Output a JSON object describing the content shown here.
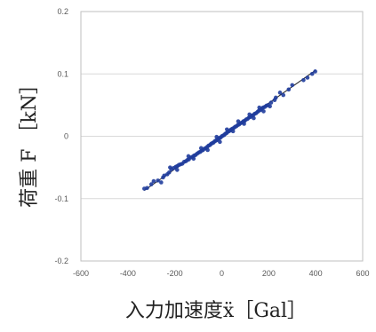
{
  "chart_data": {
    "type": "scatter",
    "title": "",
    "xlabel": "入力加速度ẍ［Gal］",
    "ylabel": "荷重 F ［kN］",
    "xlim": [
      -600,
      600
    ],
    "ylim": [
      -0.2,
      0.2
    ],
    "x_ticks": [
      -600,
      -400,
      -200,
      0,
      200,
      400,
      600
    ],
    "y_ticks": [
      -0.2,
      -0.1,
      0,
      0.1,
      0.2
    ],
    "x_tick_labels": [
      "-600",
      "-400",
      "-200",
      "0",
      "200",
      "400",
      "600"
    ],
    "y_tick_labels": [
      "-0.2",
      "-0.1",
      "0",
      "0.1",
      "0.2"
    ],
    "grid": true,
    "legend": "none",
    "marker_color": "#1f3c9c",
    "line_color": "#222222",
    "series": [
      {
        "points": [
          [
            -330,
            -0.084
          ],
          [
            -318,
            -0.083
          ],
          [
            -300,
            -0.077
          ],
          [
            -290,
            -0.072
          ],
          [
            -272,
            -0.071
          ],
          [
            -258,
            -0.074
          ],
          [
            -245,
            -0.063
          ],
          [
            -232,
            -0.061
          ],
          [
            -224,
            -0.058
          ],
          [
            -215,
            -0.053
          ],
          [
            -205,
            -0.051
          ],
          [
            -196,
            -0.049
          ],
          [
            -190,
            -0.048
          ],
          [
            -183,
            -0.046
          ],
          [
            -176,
            -0.045
          ],
          [
            -168,
            -0.044
          ],
          [
            -160,
            -0.041
          ],
          [
            -153,
            -0.04
          ],
          [
            -146,
            -0.038
          ],
          [
            -140,
            -0.037
          ],
          [
            -132,
            -0.034
          ],
          [
            -125,
            -0.033
          ],
          [
            -118,
            -0.031
          ],
          [
            -112,
            -0.03
          ],
          [
            -105,
            -0.028
          ],
          [
            -98,
            -0.026
          ],
          [
            -92,
            -0.025
          ],
          [
            -85,
            -0.023
          ],
          [
            -80,
            -0.022
          ],
          [
            -74,
            -0.02
          ],
          [
            -68,
            -0.019
          ],
          [
            -62,
            -0.017
          ],
          [
            -56,
            -0.015
          ],
          [
            -50,
            -0.014
          ],
          [
            -45,
            -0.012
          ],
          [
            -40,
            -0.011
          ],
          [
            -35,
            -0.01
          ],
          [
            -30,
            -0.008
          ],
          [
            -25,
            -0.007
          ],
          [
            -20,
            -0.006
          ],
          [
            -15,
            -0.004
          ],
          [
            -10,
            -0.003
          ],
          [
            -5,
            -0.002
          ],
          [
            0,
            0.0
          ],
          [
            5,
            0.001
          ],
          [
            10,
            0.002
          ],
          [
            15,
            0.004
          ],
          [
            20,
            0.005
          ],
          [
            25,
            0.007
          ],
          [
            30,
            0.008
          ],
          [
            35,
            0.009
          ],
          [
            40,
            0.011
          ],
          [
            45,
            0.012
          ],
          [
            50,
            0.013
          ],
          [
            56,
            0.015
          ],
          [
            62,
            0.016
          ],
          [
            68,
            0.018
          ],
          [
            74,
            0.019
          ],
          [
            80,
            0.021
          ],
          [
            86,
            0.022
          ],
          [
            92,
            0.024
          ],
          [
            98,
            0.025
          ],
          [
            104,
            0.027
          ],
          [
            110,
            0.028
          ],
          [
            116,
            0.03
          ],
          [
            122,
            0.031
          ],
          [
            128,
            0.033
          ],
          [
            134,
            0.034
          ],
          [
            140,
            0.036
          ],
          [
            146,
            0.037
          ],
          [
            152,
            0.039
          ],
          [
            158,
            0.041
          ],
          [
            164,
            0.042
          ],
          [
            170,
            0.044
          ],
          [
            176,
            0.046
          ],
          [
            183,
            0.047
          ],
          [
            190,
            0.049
          ],
          [
            197,
            0.05
          ],
          [
            210,
            0.054
          ],
          [
            225,
            0.058
          ],
          [
            248,
            0.07
          ],
          [
            262,
            0.066
          ],
          [
            285,
            0.075
          ],
          [
            300,
            0.082
          ],
          [
            348,
            0.09
          ],
          [
            365,
            0.094
          ],
          [
            385,
            0.1
          ],
          [
            398,
            0.104
          ],
          [
            -142,
            -0.032
          ],
          [
            -120,
            -0.036
          ],
          [
            -88,
            -0.019
          ],
          [
            -60,
            -0.022
          ],
          [
            -22,
            -0.001
          ],
          [
            -8,
            -0.009
          ],
          [
            22,
            0.011
          ],
          [
            48,
            0.008
          ],
          [
            70,
            0.024
          ],
          [
            95,
            0.02
          ],
          [
            118,
            0.035
          ],
          [
            136,
            0.029
          ],
          [
            160,
            0.046
          ],
          [
            178,
            0.04
          ],
          [
            -190,
            -0.054
          ],
          [
            -220,
            -0.05
          ],
          [
            -250,
            -0.066
          ],
          [
            205,
            0.048
          ],
          [
            230,
            0.062
          ]
        ]
      },
      {
        "line": [
          [
            -330,
            -0.087
          ],
          [
            400,
            0.106
          ]
        ]
      }
    ]
  }
}
